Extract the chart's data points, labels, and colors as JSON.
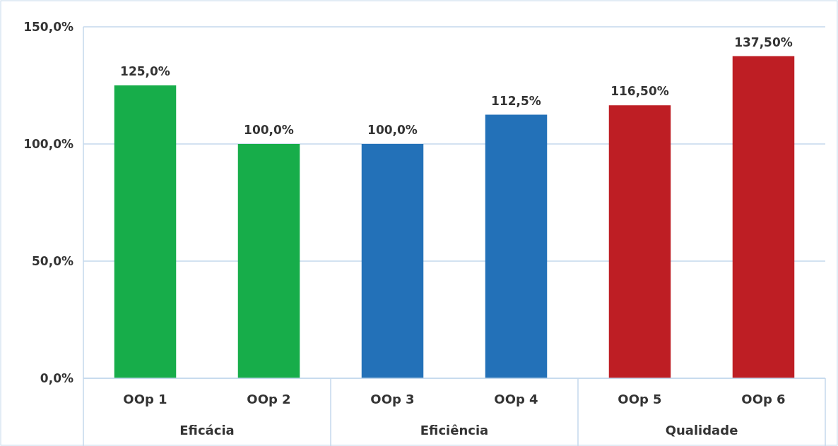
{
  "chart_data": {
    "type": "bar",
    "categories": [
      "OOp 1",
      "OOp 2",
      "OOp 3",
      "OOp 4",
      "OOp 5",
      "OOp 6"
    ],
    "values": [
      125,
      100,
      100,
      112.5,
      116.5,
      137.5
    ],
    "colors": [
      "#17ad4a",
      "#17ad4a",
      "#2371b8",
      "#2371b8",
      "#be1e24",
      "#be1e24"
    ],
    "value_labels": [
      "125,0%",
      "100,0%",
      "100,0%",
      "112,5%",
      "116,50%",
      "137,50%"
    ],
    "annotations": [
      "Eficácia",
      "Eficiência",
      "Qualidade"
    ],
    "ylim": [
      0,
      150
    ],
    "yticks": [
      {
        "value": 0,
        "label": "0,0%"
      },
      {
        "value": 50,
        "label": "50,0%"
      },
      {
        "value": 100,
        "label": "100,0%"
      },
      {
        "value": 150,
        "label": "150,0%"
      }
    ],
    "grid": "y"
  }
}
